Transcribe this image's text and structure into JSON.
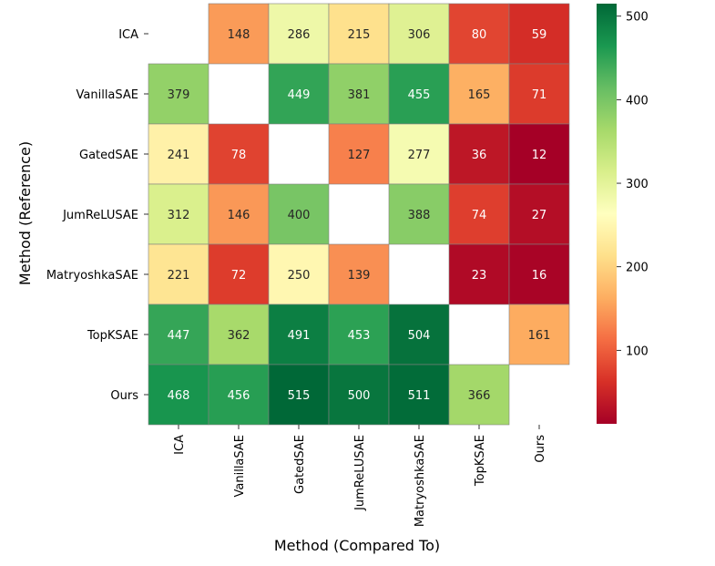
{
  "chart_data": {
    "type": "heatmap",
    "title": "",
    "xlabel": "Method (Compared To)",
    "ylabel": "Method (Reference)",
    "row_labels": [
      "ICA",
      "VanillaSAE",
      "GatedSAE",
      "JumReLUSAE",
      "MatryoshkaSAE",
      "TopKSAE",
      "Ours"
    ],
    "col_labels": [
      "ICA",
      "VanillaSAE",
      "GatedSAE",
      "JumReLUSAE",
      "MatryoshkaSAE",
      "TopKSAE",
      "Ours"
    ],
    "values": [
      [
        null,
        148,
        286,
        215,
        306,
        80,
        59
      ],
      [
        379,
        null,
        449,
        381,
        455,
        165,
        71
      ],
      [
        241,
        78,
        null,
        127,
        277,
        36,
        12
      ],
      [
        312,
        146,
        400,
        null,
        388,
        74,
        27
      ],
      [
        221,
        72,
        250,
        139,
        null,
        23,
        16
      ],
      [
        447,
        362,
        491,
        453,
        504,
        null,
        161
      ],
      [
        468,
        456,
        515,
        500,
        511,
        366,
        null
      ]
    ],
    "colormap": "RdYlGn",
    "vmin": 12,
    "vmax": 515,
    "colorbar_ticks": [
      100,
      200,
      300,
      400,
      500
    ]
  }
}
